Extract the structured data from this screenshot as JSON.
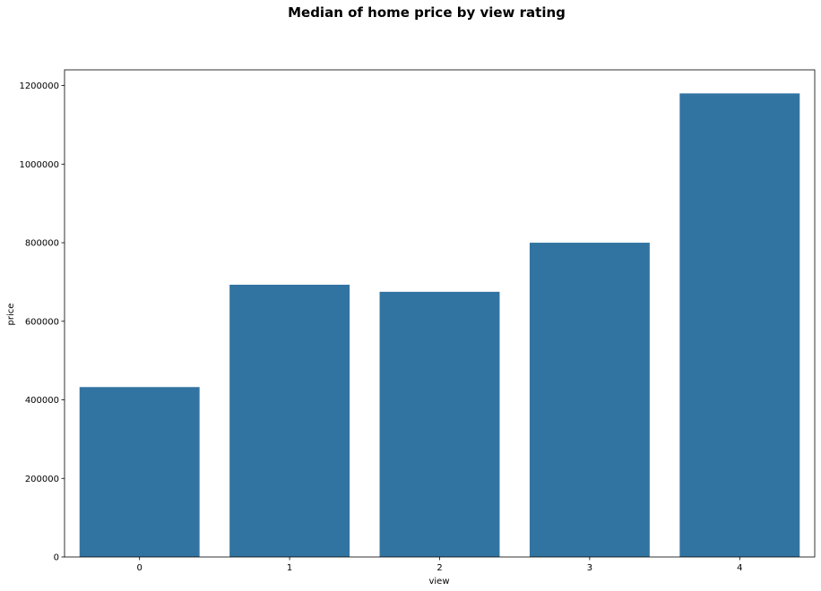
{
  "chart_data": {
    "type": "bar",
    "title": "Median of home price by view rating",
    "xlabel": "view",
    "ylabel": "price",
    "categories": [
      "0",
      "1",
      "2",
      "3",
      "4"
    ],
    "values": [
      432500,
      693000,
      675000,
      800000,
      1180000
    ],
    "ylim": [
      0,
      1240000
    ],
    "yticks": [
      0,
      200000,
      400000,
      600000,
      800000,
      1000000,
      1200000
    ],
    "grid": false,
    "legend": "none",
    "bar_color": "#3274a1"
  }
}
